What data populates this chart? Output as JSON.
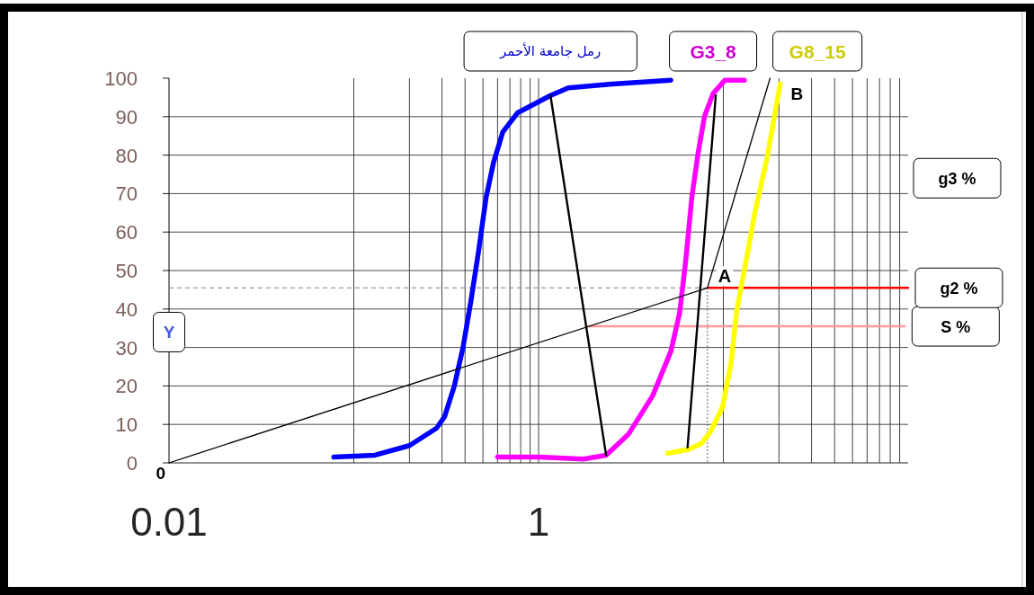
{
  "chart_data": {
    "type": "line",
    "xlim": [
      0.01,
      100
    ],
    "xticks": [
      0.01,
      {
        "value": 0.1,
        "label": null
      },
      {
        "value": 0.2,
        "label": null
      },
      {
        "value": 0.3,
        "label": null
      },
      {
        "value": 0.4,
        "label": null
      },
      {
        "value": 0.5,
        "label": null
      },
      {
        "value": 0.6,
        "label": null
      },
      {
        "value": 0.7,
        "label": null
      },
      {
        "value": 0.8,
        "label": null
      },
      {
        "value": 0.9,
        "label": null
      },
      1,
      {
        "value": 10,
        "label": null
      },
      {
        "value": 20,
        "label": null
      },
      {
        "value": 30,
        "label": null
      },
      {
        "value": 40,
        "label": null
      },
      {
        "value": 50,
        "label": null
      },
      {
        "value": 60,
        "label": null
      },
      {
        "value": 70,
        "label": null
      },
      {
        "value": 80,
        "label": null
      },
      {
        "value": 90,
        "label": null
      }
    ],
    "ylim": [
      0,
      100
    ],
    "yticks": [
      0,
      10,
      20,
      30,
      40,
      50,
      60,
      70,
      80,
      90,
      100
    ],
    "log": "x",
    "grid": true,
    "series": [
      {
        "color": "#808080",
        "line_style": "dashed",
        "x": [
          0.01,
          8.2
        ],
        "values": [
          45.5,
          45.5
        ]
      },
      {
        "color": "#404040",
        "line_style": "dotted",
        "x": [
          8.2,
          8.2
        ],
        "values": [
          45.5,
          0
        ]
      },
      {
        "name": "S %",
        "color": "#ff9999",
        "x": [
          1.8,
          96
        ],
        "values": [
          35.5,
          35.5
        ]
      },
      {
        "name": "g2 %",
        "color": "#ff0000",
        "x": [
          8.2,
          100
        ],
        "values": [
          45.5,
          45.5
        ]
      },
      {
        "name": "رمل جامعة الأحمر",
        "color": "#0000ff",
        "x": [
          0.078,
          0.13,
          0.2,
          0.28,
          0.31,
          0.35,
          0.39,
          0.43,
          0.47,
          0.52,
          0.57,
          0.64,
          0.77,
          1.16,
          1.45,
          2.5,
          5.2
        ],
        "values": [
          1.5,
          2,
          4.5,
          9,
          12,
          20,
          30,
          42,
          54,
          69,
          78,
          86,
          91,
          95.5,
          97.5,
          98.5,
          99.5
        ]
      },
      {
        "name": "G3_8",
        "color": "#ff00ff",
        "x": [
          0.6,
          1,
          1.75,
          2.32,
          3.07,
          4.15,
          5.2,
          5.8,
          6.27,
          6.75,
          7.3,
          7.9,
          8.8,
          10.2,
          13
        ],
        "values": [
          1.5,
          1.5,
          1,
          2,
          7.5,
          17.5,
          29,
          39,
          53,
          69,
          80.5,
          90,
          96,
          99.5,
          99.5
        ]
      },
      {
        "name": "G8_15",
        "color": "#ffff00",
        "x": [
          5,
          6.5,
          7.6,
          8.5,
          9.9,
          11,
          11.8,
          13.1,
          14.8,
          17.2,
          20.3
        ],
        "values": [
          2.5,
          3.5,
          5,
          8,
          14.5,
          26,
          39.5,
          51,
          65,
          79,
          98.5
        ]
      },
      {
        "color": "#000000",
        "x": [
          1.16,
          2.32
        ],
        "values": [
          95.5,
          2
        ]
      },
      {
        "color": "#000000",
        "x": [
          6.4,
          9.1
        ],
        "values": [
          4,
          95.5
        ]
      },
      {
        "color": "#000000",
        "x": [
          0.01,
          8.2,
          17.9
        ],
        "values": [
          0,
          45.5,
          100
        ]
      }
    ],
    "annotations": [
      {
        "text": "0",
        "x": 0.01,
        "y": 0
      },
      {
        "text": "Y",
        "x": 0.01,
        "y": 34
      },
      {
        "text": "A",
        "x": 8.2,
        "y": 45.5
      },
      {
        "text": "B",
        "x": 17.9,
        "y": 100
      },
      "g3 %"
    ]
  }
}
